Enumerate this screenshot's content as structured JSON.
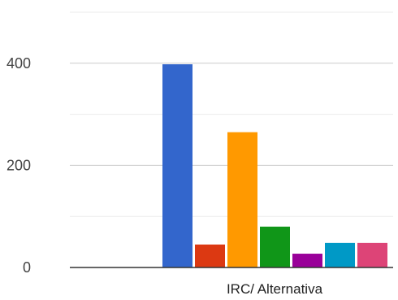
{
  "chart_data": {
    "type": "bar",
    "title": "",
    "xlabel": "",
    "ylabel": "",
    "categories": [
      "IRC/ Alternativa"
    ],
    "ylim": [
      0,
      500
    ],
    "y_ticks": [
      0,
      200,
      400
    ],
    "grid": true,
    "series": [
      {
        "values": [
          0
        ],
        "color": "#3366cc"
      },
      {
        "values": [
          398
        ],
        "color": "#3366cc"
      },
      {
        "values": [
          45
        ],
        "color": "#dc3912"
      },
      {
        "values": [
          265
        ],
        "color": "#ff9900"
      },
      {
        "values": [
          80
        ],
        "color": "#109618"
      },
      {
        "values": [
          27
        ],
        "color": "#990099"
      },
      {
        "values": [
          48
        ],
        "color": "#0099c6"
      },
      {
        "values": [
          48
        ],
        "color": "#dd4477"
      }
    ]
  }
}
